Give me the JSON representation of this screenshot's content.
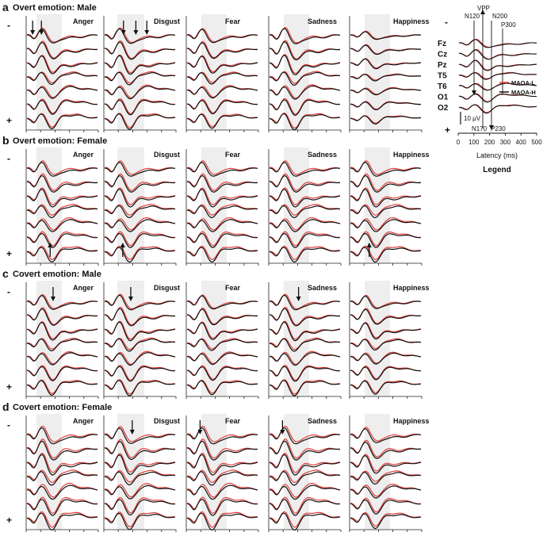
{
  "chart_data": {
    "type": "line",
    "figure": "ERP waveforms by MAOA genotype across emotion conditions",
    "conditions": [
      "Anger",
      "Disgust",
      "Fear",
      "Sadness",
      "Happiness"
    ],
    "channels": [
      "Fz",
      "Cz",
      "Pz",
      "T5",
      "T6",
      "O1",
      "O2"
    ],
    "series": [
      {
        "name": "MAOA-L",
        "color": "#e0403a"
      },
      {
        "name": "MAOA-H",
        "color": "#111111"
      }
    ],
    "polarity": {
      "negative": "-",
      "positive": "+"
    },
    "panels": [
      {
        "letter": "a",
        "title": "Overt emotion: Male",
        "gains": [
          1.0,
          1.05,
          0.95,
          1.1,
          0.55
        ],
        "down_arrows": [
          [
            0.1,
            0.22
          ],
          [
            0.28,
            0.45,
            0.6
          ],
          [],
          [],
          []
        ],
        "up_arrows": [
          [],
          [],
          [],
          [],
          []
        ]
      },
      {
        "letter": "b",
        "title": "Overt emotion: Female",
        "gains": [
          1.0,
          1.0,
          1.0,
          1.0,
          1.0
        ],
        "down_arrows": [
          [],
          [],
          [],
          [],
          []
        ],
        "up_arrows": [
          [
            0.34
          ],
          [
            0.27
          ],
          [],
          [],
          [
            0.28
          ]
        ]
      },
      {
        "letter": "c",
        "title": "Covert emotion: Male",
        "gains": [
          1.0,
          1.05,
          0.95,
          1.05,
          0.9
        ],
        "down_arrows": [
          [
            0.38
          ],
          [
            0.38
          ],
          [],
          [
            0.42
          ],
          []
        ],
        "up_arrows": [
          [],
          [],
          [],
          [],
          []
        ]
      },
      {
        "letter": "d",
        "title": "Covert emotion: Female",
        "gains": [
          1.15,
          1.1,
          1.15,
          1.15,
          1.0
        ],
        "down_arrows": [
          [],
          [
            0.4
          ],
          [
            0.2
          ],
          [
            0.2
          ],
          []
        ],
        "up_arrows": [
          [],
          [],
          [],
          [],
          []
        ]
      }
    ],
    "legend": {
      "title": "Legend",
      "components": {
        "vpp": "VPP",
        "n120": "N120",
        "n200": "N200",
        "p300": "P300",
        "n170": "N170",
        "p230": "P230"
      },
      "scale_bar": "10 µV",
      "xticks": [
        0,
        100,
        200,
        300,
        400,
        500
      ],
      "xlim": [
        0,
        500
      ],
      "xlabel": "Latency (ms)",
      "series_labels": [
        "MAOA-L",
        "MAOA-H"
      ]
    },
    "shaded_window_ms": [
      130,
      250
    ]
  }
}
